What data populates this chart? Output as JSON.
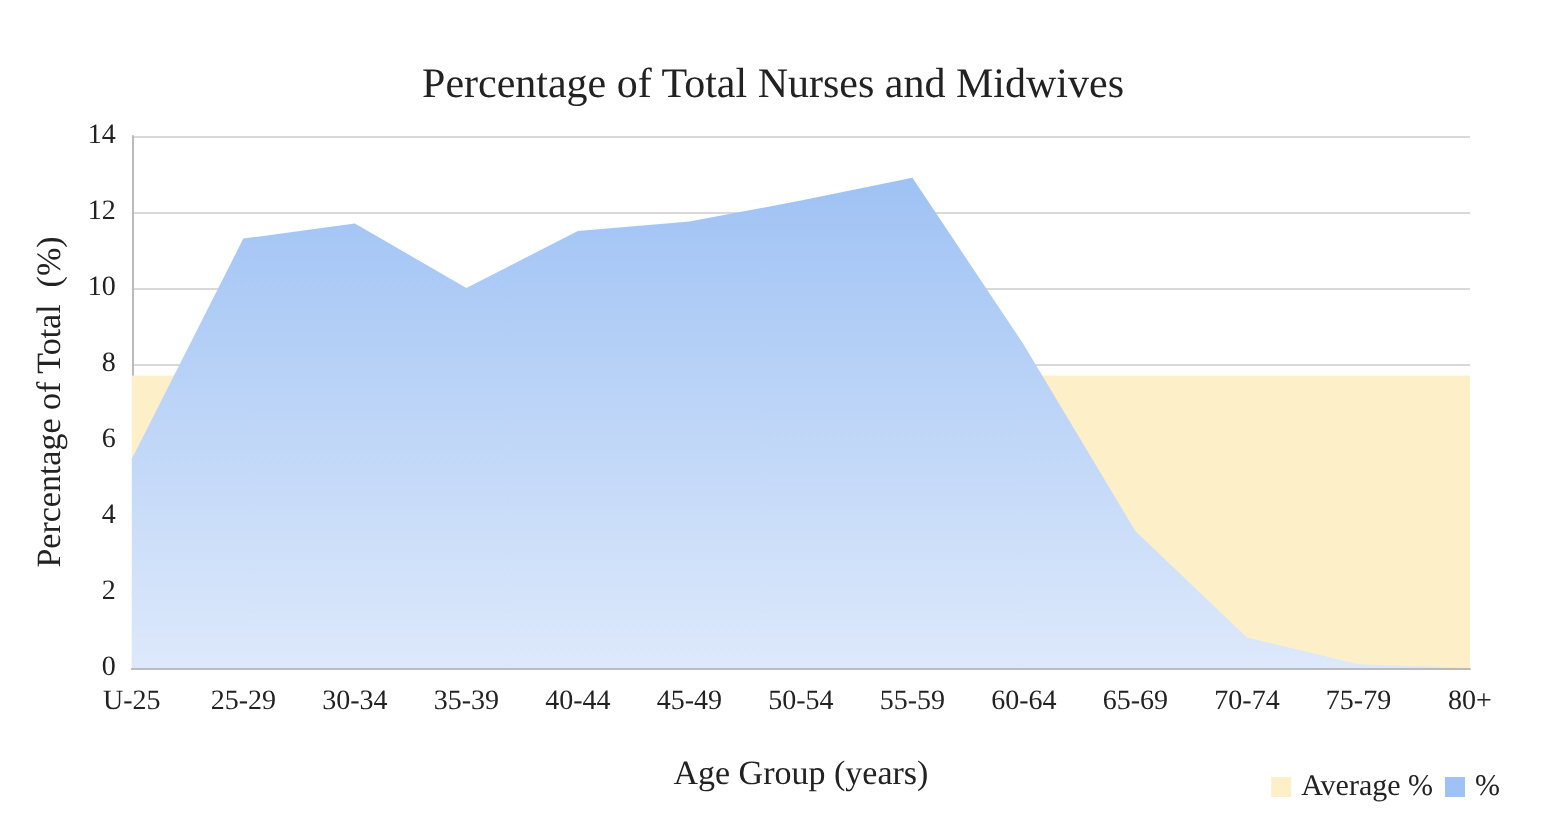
{
  "chart_data": {
    "type": "area",
    "title": "Percentage of Total Nurses and Midwives",
    "xlabel": "Age Group (years)",
    "ylabel": "Percentage of Total  (%)",
    "categories": [
      "U-25",
      "25-29",
      "30-34",
      "35-39",
      "40-44",
      "45-49",
      "50-54",
      "55-59",
      "60-64",
      "65-69",
      "70-74",
      "75-79",
      "80+"
    ],
    "series": [
      {
        "name": "%",
        "color": "#9fc2f4",
        "values": [
          5.5,
          11.3,
          11.7,
          10.0,
          11.5,
          11.75,
          12.3,
          12.9,
          8.5,
          3.6,
          0.8,
          0.1,
          0.0
        ]
      }
    ],
    "bands": [
      {
        "axis": "y",
        "from": 0,
        "to": 7.7,
        "label": "Average %",
        "color": "#fdefc7"
      }
    ],
    "ylim": [
      0,
      14
    ],
    "yticks": [
      0,
      2,
      4,
      6,
      8,
      10,
      12,
      14
    ],
    "grid": "y",
    "legend": "bottom right"
  }
}
